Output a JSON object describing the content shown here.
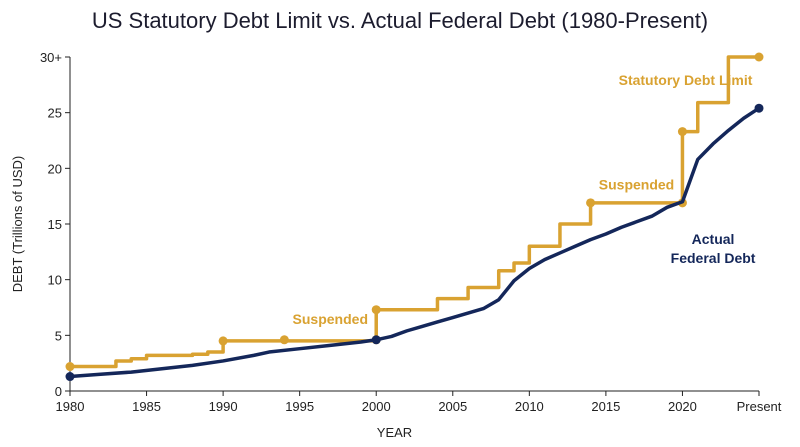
{
  "chart_data": {
    "type": "line",
    "title": "US Statutory Debt Limit vs. Actual Federal Debt (1980-Present)",
    "xlabel": "YEAR",
    "ylabel": "DEBT (Trillions of USD)",
    "xlim": [
      1980,
      2025
    ],
    "ylim": [
      0,
      30
    ],
    "x_ticks": [
      1980,
      1985,
      1990,
      1995,
      2000,
      2005,
      2010,
      2015,
      2020,
      2025
    ],
    "x_tick_labels": [
      "1980",
      "1985",
      "1990",
      "1995",
      "2000",
      "2005",
      "2010",
      "2015",
      "2020",
      "Present"
    ],
    "y_ticks": [
      0,
      5,
      10,
      15,
      20,
      25,
      30
    ],
    "y_tick_labels": [
      "0",
      "5",
      "10",
      "15",
      "20",
      "25",
      "30+"
    ],
    "grid": false,
    "series": [
      {
        "name": "Statutory Debt Limit",
        "color": "#D9A231",
        "step": true,
        "points": [
          [
            1980,
            2.2
          ],
          [
            1983,
            2.7
          ],
          [
            1984,
            2.9
          ],
          [
            1985,
            3.2
          ],
          [
            1988,
            3.3
          ],
          [
            1989,
            3.5
          ],
          [
            1990,
            3.7
          ],
          [
            1990,
            4.5
          ],
          [
            2000,
            4.6
          ],
          [
            2000,
            7.3
          ],
          [
            2004,
            8.3
          ],
          [
            2006,
            9.3
          ],
          [
            2008,
            10.8
          ],
          [
            2009,
            11.5
          ],
          [
            2010,
            13.0
          ],
          [
            2012,
            15.0
          ],
          [
            2014,
            16.9
          ],
          [
            2020,
            16.9
          ],
          [
            2020,
            23.3
          ],
          [
            2021,
            25.9
          ],
          [
            2023,
            30.0
          ],
          [
            2025,
            30.0
          ]
        ],
        "markers": [
          [
            1980,
            2.2
          ],
          [
            1990,
            4.5
          ],
          [
            1994,
            4.6
          ],
          [
            2000,
            4.6
          ],
          [
            2000,
            7.3
          ],
          [
            2014,
            16.9
          ],
          [
            2020,
            16.9
          ],
          [
            2020,
            23.3
          ],
          [
            2025,
            30.0
          ]
        ]
      },
      {
        "name": "Actual Federal Debt",
        "color": "#14275A",
        "step": false,
        "points": [
          [
            1980,
            1.3
          ],
          [
            1982,
            1.5
          ],
          [
            1984,
            1.7
          ],
          [
            1986,
            2.0
          ],
          [
            1988,
            2.3
          ],
          [
            1990,
            2.7
          ],
          [
            1992,
            3.2
          ],
          [
            1993,
            3.5
          ],
          [
            1995,
            3.8
          ],
          [
            1997,
            4.1
          ],
          [
            1999,
            4.4
          ],
          [
            2000,
            4.6
          ],
          [
            2001,
            4.9
          ],
          [
            2002,
            5.4
          ],
          [
            2003,
            5.8
          ],
          [
            2004,
            6.2
          ],
          [
            2005,
            6.6
          ],
          [
            2006,
            7.0
          ],
          [
            2007,
            7.4
          ],
          [
            2008,
            8.2
          ],
          [
            2009,
            9.9
          ],
          [
            2010,
            11.0
          ],
          [
            2011,
            11.8
          ],
          [
            2012,
            12.4
          ],
          [
            2013,
            13.0
          ],
          [
            2014,
            13.6
          ],
          [
            2015,
            14.1
          ],
          [
            2016,
            14.7
          ],
          [
            2017,
            15.2
          ],
          [
            2018,
            15.7
          ],
          [
            2019,
            16.5
          ],
          [
            2020,
            17.0
          ],
          [
            2021,
            20.8
          ],
          [
            2022,
            22.2
          ],
          [
            2023,
            23.4
          ],
          [
            2024,
            24.5
          ],
          [
            2025,
            25.4
          ]
        ],
        "markers": [
          [
            1980,
            1.3
          ],
          [
            2000,
            4.6
          ],
          [
            2025,
            25.4
          ]
        ]
      }
    ],
    "annotations": [
      {
        "text": "Statutory Debt Limit",
        "x": 2020.2,
        "y": 27.5,
        "color": "#D9A231",
        "lines": [
          "Statutory Debt Limit"
        ]
      },
      {
        "text": "Suspended",
        "x": 1997.0,
        "y": 6.0,
        "color": "#D9A231",
        "lines": [
          "Suspended"
        ]
      },
      {
        "text": "Suspended",
        "x": 2017.0,
        "y": 18.1,
        "color": "#D9A231",
        "lines": [
          "Suspended"
        ]
      },
      {
        "text": "Actual Federal Debt",
        "x": 2022.0,
        "y": 13.2,
        "color": "#14275A",
        "lines": [
          "Actual",
          "Federal Debt"
        ]
      }
    ]
  }
}
